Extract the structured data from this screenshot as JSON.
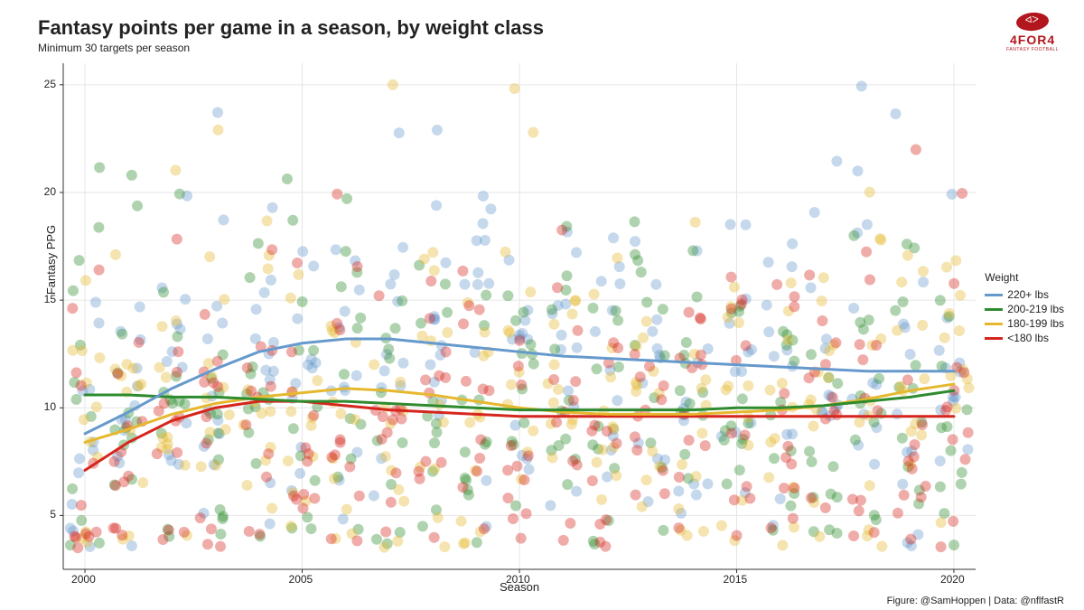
{
  "title": "Fantasy points per game in a season, by weight class",
  "subtitle": "Minimum 30 targets per season",
  "logo": {
    "text": "4FOR4",
    "sub": "FANTASY FOOTBALL"
  },
  "credit": "Figure: @SamHoppen | Data: @nflfastR",
  "xlabel": "Season",
  "ylabel": "Fantasy PPG",
  "xlim": [
    1999.5,
    2020.5
  ],
  "ylim": [
    2.5,
    26
  ],
  "xtick_step": 5,
  "xticks": [
    2000,
    2005,
    2010,
    2015,
    2020
  ],
  "yticks": [
    5,
    10,
    15,
    20,
    25
  ],
  "grid_color": "#e6e6e6",
  "background_color": "#ffffff",
  "axis_line_color": "#333333",
  "point_radius": 6,
  "point_opacity": 0.38,
  "line_width": 3,
  "label_fontsize": 13,
  "tick_fontsize": 12,
  "title_fontsize": 22,
  "legend": {
    "title": "Weight",
    "items": [
      {
        "label": "220+ lbs",
        "color": "#6699cc"
      },
      {
        "label": "200-219 lbs",
        "color": "#2e8b2e"
      },
      {
        "label": "180-199 lbs",
        "color": "#e6b82e"
      },
      {
        "label": "<180 lbs",
        "color": "#d6251c"
      }
    ]
  },
  "series": [
    {
      "name": "220+ lbs",
      "color": "#6699cc",
      "smooth": [
        [
          2000,
          8.8
        ],
        [
          2001,
          9.8
        ],
        [
          2002,
          10.9
        ],
        [
          2003,
          11.8
        ],
        [
          2004,
          12.6
        ],
        [
          2005,
          13.0
        ],
        [
          2006,
          13.2
        ],
        [
          2007,
          13.2
        ],
        [
          2008,
          13.0
        ],
        [
          2009,
          12.8
        ],
        [
          2010,
          12.6
        ],
        [
          2011,
          12.4
        ],
        [
          2012,
          12.3
        ],
        [
          2013,
          12.2
        ],
        [
          2014,
          12.1
        ],
        [
          2015,
          12.0
        ],
        [
          2016,
          11.9
        ],
        [
          2017,
          11.8
        ],
        [
          2018,
          11.7
        ],
        [
          2019,
          11.7
        ],
        [
          2020,
          11.7
        ]
      ]
    },
    {
      "name": "200-219 lbs",
      "color": "#2e8b2e",
      "smooth": [
        [
          2000,
          10.6
        ],
        [
          2001,
          10.6
        ],
        [
          2002,
          10.5
        ],
        [
          2003,
          10.5
        ],
        [
          2004,
          10.4
        ],
        [
          2005,
          10.3
        ],
        [
          2006,
          10.3
        ],
        [
          2007,
          10.2
        ],
        [
          2008,
          10.1
        ],
        [
          2009,
          10.0
        ],
        [
          2010,
          9.9
        ],
        [
          2011,
          9.9
        ],
        [
          2012,
          9.9
        ],
        [
          2013,
          9.9
        ],
        [
          2014,
          9.9
        ],
        [
          2015,
          10.0
        ],
        [
          2016,
          10.0
        ],
        [
          2017,
          10.1
        ],
        [
          2018,
          10.3
        ],
        [
          2019,
          10.5
        ],
        [
          2020,
          10.8
        ]
      ]
    },
    {
      "name": "180-199 lbs",
      "color": "#e6b82e",
      "smooth": [
        [
          2000,
          8.4
        ],
        [
          2001,
          9.0
        ],
        [
          2002,
          9.7
        ],
        [
          2003,
          10.2
        ],
        [
          2004,
          10.5
        ],
        [
          2005,
          10.7
        ],
        [
          2006,
          10.9
        ],
        [
          2007,
          10.8
        ],
        [
          2008,
          10.6
        ],
        [
          2009,
          10.3
        ],
        [
          2010,
          10.0
        ],
        [
          2011,
          9.8
        ],
        [
          2012,
          9.7
        ],
        [
          2013,
          9.7
        ],
        [
          2014,
          9.7
        ],
        [
          2015,
          9.8
        ],
        [
          2016,
          9.9
        ],
        [
          2017,
          10.1
        ],
        [
          2018,
          10.4
        ],
        [
          2019,
          10.8
        ],
        [
          2020,
          11.1
        ]
      ]
    },
    {
      "name": "<180 lbs",
      "color": "#d6251c",
      "smooth": [
        [
          2000,
          7.1
        ],
        [
          2001,
          8.4
        ],
        [
          2002,
          9.4
        ],
        [
          2003,
          10.0
        ],
        [
          2004,
          10.3
        ],
        [
          2005,
          10.3
        ],
        [
          2006,
          10.1
        ],
        [
          2007,
          9.9
        ],
        [
          2008,
          9.8
        ],
        [
          2009,
          9.7
        ],
        [
          2010,
          9.6
        ],
        [
          2011,
          9.6
        ],
        [
          2012,
          9.6
        ],
        [
          2013,
          9.6
        ],
        [
          2014,
          9.6
        ],
        [
          2015,
          9.6
        ],
        [
          2016,
          9.6
        ],
        [
          2017,
          9.6
        ],
        [
          2018,
          9.6
        ],
        [
          2019,
          9.6
        ],
        [
          2020,
          9.6
        ]
      ]
    }
  ],
  "scatter": {
    "points_per_year_per_class": 12,
    "jitter_x": 0.35,
    "y_range": [
      3.5,
      25.5
    ]
  }
}
